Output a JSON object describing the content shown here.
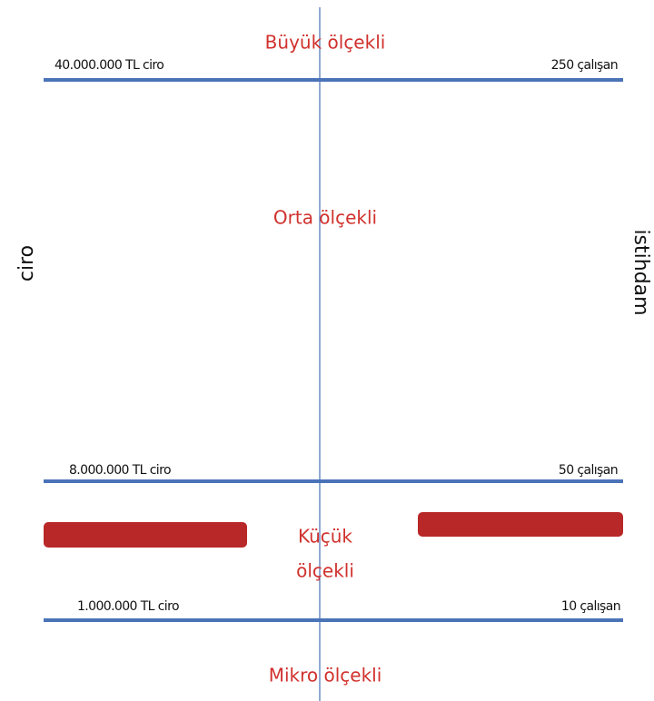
{
  "axes": {
    "left": "ciro",
    "right": "istihdam"
  },
  "segments": [
    {
      "lines": [
        "Büyük ölçekli"
      ]
    },
    {
      "lines": [
        "Orta ölçekli"
      ]
    },
    {
      "lines": [
        "Küçük",
        "ölçekli"
      ]
    },
    {
      "lines": [
        "Mikro ölçekli"
      ]
    }
  ],
  "thresholds": [
    {
      "ciro": "40.000.000 TL ciro",
      "istihdam": "250 çalışan"
    },
    {
      "ciro": "8.000.000 TL ciro",
      "istihdam": "50 çalışan"
    },
    {
      "ciro": "1.000.000 TL ciro",
      "istihdam": "10 çalışan"
    }
  ]
}
